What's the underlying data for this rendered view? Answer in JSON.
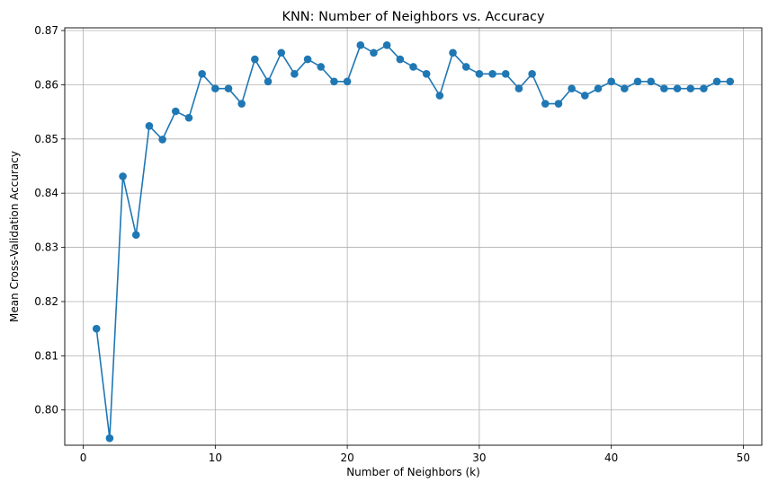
{
  "chart_data": {
    "type": "line",
    "title": "KNN: Number of Neighbors vs. Accuracy",
    "xlabel": "Number of Neighbors (k)",
    "ylabel": "Mean Cross-Validation Accuracy",
    "xlim": [
      -1.4,
      51.4
    ],
    "ylim": [
      0.7935,
      0.8705
    ],
    "xticks": [
      0,
      10,
      20,
      30,
      40,
      50
    ],
    "yticks": [
      0.8,
      0.81,
      0.82,
      0.83,
      0.84,
      0.85,
      0.86,
      0.87
    ],
    "xtick_labels": [
      "0",
      "10",
      "20",
      "30",
      "40",
      "50"
    ],
    "ytick_labels": [
      "0.80",
      "0.81",
      "0.82",
      "0.83",
      "0.84",
      "0.85",
      "0.86",
      "0.87"
    ],
    "grid": true,
    "line_color": "#1f77b4",
    "marker": "circle",
    "series": [
      {
        "x": [
          1,
          2,
          3,
          4,
          5,
          6,
          7,
          8,
          9,
          10,
          11,
          12,
          13,
          14,
          15,
          16,
          17,
          18,
          19,
          20,
          21,
          22,
          23,
          24,
          25,
          26,
          27,
          28,
          29,
          30,
          31,
          32,
          33,
          34,
          35,
          36,
          37,
          38,
          39,
          40,
          41,
          42,
          43,
          44,
          45,
          46,
          47,
          48,
          49
        ],
        "values": [
          0.815,
          0.7948,
          0.8431,
          0.8323,
          0.8524,
          0.8499,
          0.8551,
          0.8539,
          0.862,
          0.8593,
          0.8593,
          0.8565,
          0.8647,
          0.8606,
          0.8659,
          0.862,
          0.8647,
          0.8633,
          0.8606,
          0.8606,
          0.8673,
          0.8659,
          0.8673,
          0.8647,
          0.8633,
          0.862,
          0.858,
          0.8659,
          0.8633,
          0.862,
          0.862,
          0.862,
          0.8593,
          0.862,
          0.8565,
          0.8565,
          0.8593,
          0.858,
          0.8593,
          0.8606,
          0.8593,
          0.8606,
          0.8606,
          0.8593,
          0.8593,
          0.8593,
          0.8593,
          0.8606,
          0.8606
        ]
      }
    ]
  }
}
